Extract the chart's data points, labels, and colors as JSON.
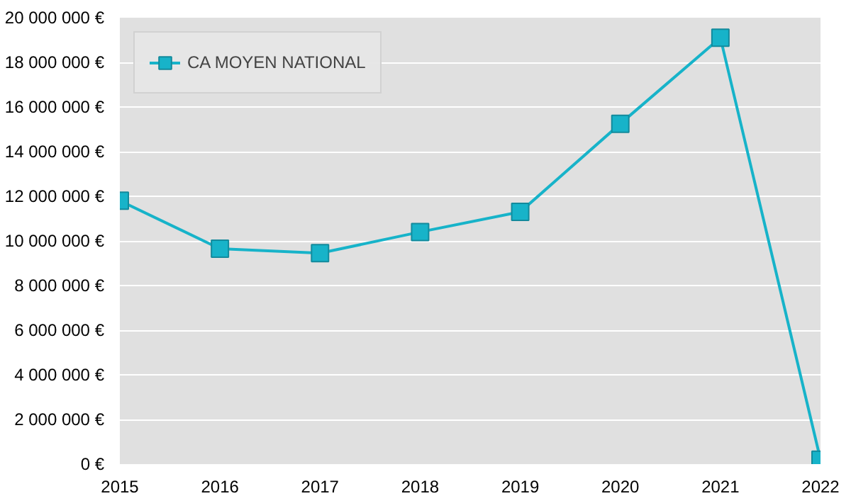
{
  "chart_data": {
    "type": "line",
    "x": [
      2015,
      2016,
      2017,
      2018,
      2019,
      2020,
      2021,
      2022
    ],
    "series": [
      {
        "name": "CA MOYEN NATIONAL",
        "color": "#17b3c9",
        "values": [
          11800000,
          9650000,
          9450000,
          10400000,
          11300000,
          15250000,
          19100000,
          200000
        ]
      }
    ],
    "xlim": [
      2015,
      2022
    ],
    "xticks": [
      2015,
      2016,
      2017,
      2018,
      2019,
      2020,
      2021,
      2022
    ],
    "ylim": [
      0,
      20000000
    ],
    "yticks": [
      {
        "value": 0,
        "label": "0 €"
      },
      {
        "value": 2000000,
        "label": "2 000 000 €"
      },
      {
        "value": 4000000,
        "label": "4 000 000 €"
      },
      {
        "value": 6000000,
        "label": "6 000 000 €"
      },
      {
        "value": 8000000,
        "label": "8 000 000 €"
      },
      {
        "value": 10000000,
        "label": "10 000 000 €"
      },
      {
        "value": 12000000,
        "label": "12 000 000 €"
      },
      {
        "value": 14000000,
        "label": "14 000 000 €"
      },
      {
        "value": 16000000,
        "label": "16 000 000 €"
      },
      {
        "value": 18000000,
        "label": "18 000 000 €"
      },
      {
        "value": 20000000,
        "label": "20 000 000 €"
      }
    ],
    "grid": "y",
    "legend": "top left",
    "marker": "square",
    "line_style": "solid"
  }
}
